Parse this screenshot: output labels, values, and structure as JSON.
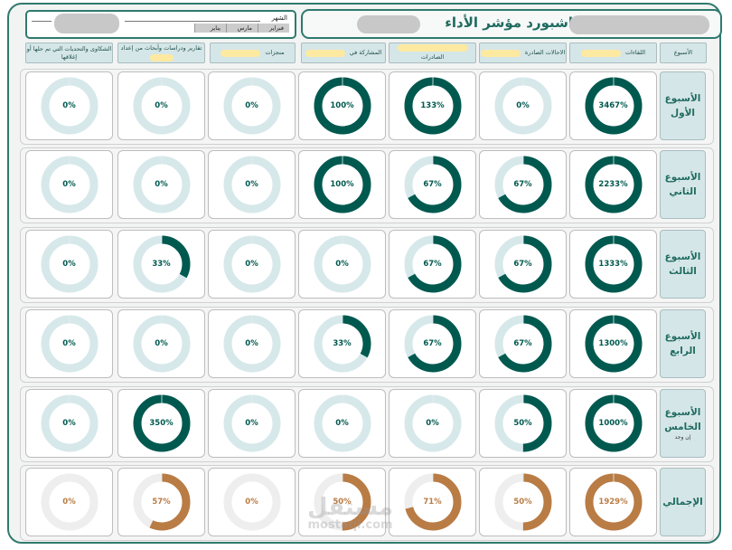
{
  "header": {
    "title": "داشبورد مؤشر الأداء",
    "month_label": "الشهر",
    "month_options": [
      "فبراير",
      "مارس",
      "يناير"
    ]
  },
  "columns": [
    {
      "label": "الأسبوع"
    },
    {
      "label": "اللقاءات",
      "has_pill": true
    },
    {
      "label": "الاحالات الصادرة",
      "has_pill": true
    },
    {
      "label": "الصادرات",
      "has_pill": true
    },
    {
      "label": "المشاركة في",
      "has_pill": true
    },
    {
      "label": "منجزات",
      "has_pill": true
    },
    {
      "label": "تقارير ودراسات وأبحاث من إعداد",
      "has_pill": true
    },
    {
      "label": "الشكاوى والتحديات التي تم حلها أو إغلاقها"
    }
  ],
  "rows": [
    {
      "label": "الأسبوع الأول",
      "sub": "",
      "values": [
        "3467%",
        "0%",
        "133%",
        "100%",
        "0%",
        "0%",
        "0%"
      ],
      "fill": [
        1,
        0,
        1,
        1,
        0,
        0,
        0
      ]
    },
    {
      "label": "الأسبوع الثاني",
      "sub": "",
      "values": [
        "2233%",
        "67%",
        "67%",
        "100%",
        "0%",
        "0%",
        "0%"
      ],
      "fill": [
        1,
        0.67,
        0.67,
        1,
        0,
        0,
        0
      ]
    },
    {
      "label": "الأسبوع الثالث",
      "sub": "",
      "values": [
        "1333%",
        "67%",
        "67%",
        "0%",
        "0%",
        "33%",
        "0%"
      ],
      "fill": [
        1,
        0.67,
        0.67,
        0,
        0,
        0.33,
        0
      ]
    },
    {
      "label": "الأسبوع الرابع",
      "sub": "",
      "values": [
        "1300%",
        "67%",
        "67%",
        "33%",
        "0%",
        "0%",
        "0%"
      ],
      "fill": [
        1,
        0.67,
        0.67,
        0.33,
        0,
        0,
        0
      ]
    },
    {
      "label": "الأسبوع الخامس",
      "sub": "إن وجد",
      "values": [
        "1000%",
        "50%",
        "0%",
        "0%",
        "0%",
        "350%",
        "0%"
      ],
      "fill": [
        1,
        0.5,
        0,
        0,
        0,
        1,
        0
      ]
    },
    {
      "label": "الإجمالي",
      "sub": "",
      "values": [
        "1929%",
        "50%",
        "71%",
        "50%",
        "0%",
        "57%",
        "0%"
      ],
      "fill": [
        1,
        0.5,
        0.71,
        0.5,
        0,
        0.57,
        0
      ],
      "total": true
    }
  ],
  "colors": {
    "accent": "#00594f",
    "track": "#d6e8ea",
    "total_accent": "#b97c45",
    "total_track": "#eeeeee",
    "frame": "#2f7a6e"
  },
  "watermark": {
    "ar": "مستقل",
    "en": "mostaql.com"
  }
}
